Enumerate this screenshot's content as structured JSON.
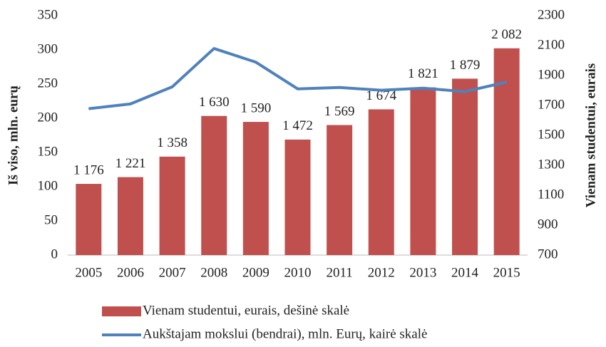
{
  "chart_data": {
    "type": "combo",
    "y_label": "Iš viso, mln. eurų",
    "y2_label": "Vienam studentui, eurais",
    "categories": [
      "2005",
      "2006",
      "2007",
      "2008",
      "2009",
      "2010",
      "2011",
      "2012",
      "2013",
      "2014",
      "2015"
    ],
    "series": [
      {
        "name": "Vienam studentui, eurais, dešinė skalė",
        "type": "bar",
        "axis": "y2",
        "color": "#c0504d",
        "values": [
          1176,
          1221,
          1358,
          1630,
          1590,
          1472,
          1569,
          1674,
          1821,
          1879,
          2082
        ],
        "value_labels": [
          "1 176",
          "1 221",
          "1 358",
          "1 630",
          "1 590",
          "1 472",
          "1 569",
          "1 674",
          "1 821",
          "1 879",
          "2 082"
        ]
      },
      {
        "name": "Aukštajam mokslui (bendrai), mln. Eurų, kairė skalė",
        "type": "line",
        "color": "#4f81bd",
        "values": [
          214,
          221,
          246,
          302,
          282,
          243,
          245,
          241,
          244,
          239,
          253
        ]
      }
    ],
    "ylim": [
      0,
      350
    ],
    "yticks": [
      0,
      50,
      100,
      150,
      200,
      250,
      300,
      350
    ],
    "y2lim": [
      700,
      2300
    ],
    "y2ticks": [
      700,
      900,
      1100,
      1300,
      1500,
      1700,
      1900,
      2100,
      2300
    ],
    "grid": false
  }
}
